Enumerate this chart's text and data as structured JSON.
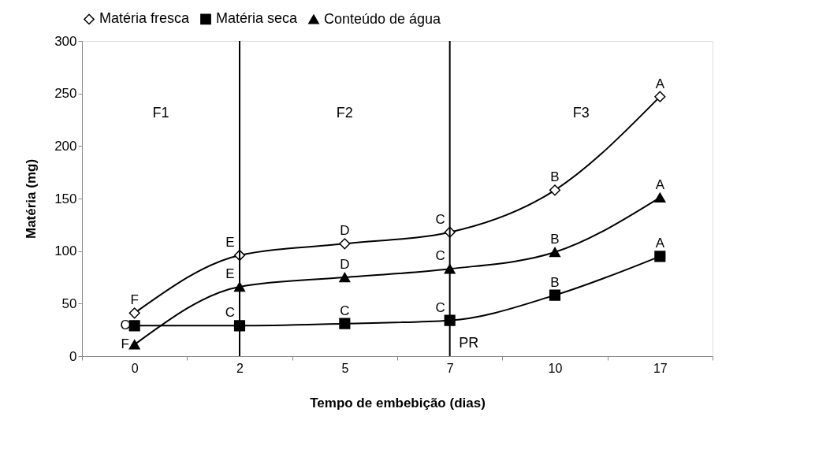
{
  "chart_data": {
    "type": "line",
    "xlabel": "Tempo de embebição (dias)",
    "ylabel": "Matéria (mg)",
    "categories": [
      "0",
      "2",
      "5",
      "7",
      "10",
      "17"
    ],
    "series": [
      {
        "name": "Matéria fresca",
        "color": "#000000",
        "marker": "diamond",
        "values": [
          41,
          96,
          107,
          118,
          158,
          247
        ]
      },
      {
        "name": "Matéria seca",
        "color": "#000000",
        "marker": "square",
        "values": [
          29,
          29,
          31,
          34,
          58,
          95
        ]
      },
      {
        "name": "Conteúdo de água",
        "color": "#000000",
        "marker": "triangle",
        "values": [
          11,
          66,
          75,
          83,
          99,
          151
        ]
      }
    ],
    "ylim": [
      0,
      300
    ],
    "yticks": [
      0,
      50,
      100,
      150,
      200,
      250,
      300
    ],
    "grid": false,
    "legend": "top",
    "ref_lines": [
      {
        "axis": "x",
        "value": "2",
        "color": "#000000"
      },
      {
        "axis": "x",
        "value": "7",
        "color": "#000000"
      }
    ],
    "annotations": [
      "F1",
      "F2",
      "F3",
      "PR",
      {
        "text": "F",
        "x": "0",
        "y": 41
      },
      {
        "text": "E",
        "x": "2",
        "y": 96
      },
      {
        "text": "D",
        "x": "5",
        "y": 107
      },
      {
        "text": "C",
        "x": "7",
        "y": 118
      },
      {
        "text": "B",
        "x": "10",
        "y": 158
      },
      {
        "text": "A",
        "x": "17",
        "y": 247
      },
      {
        "text": "C",
        "x": "0",
        "y": 29
      },
      {
        "text": "C",
        "x": "2",
        "y": 29
      },
      {
        "text": "C",
        "x": "5",
        "y": 31
      },
      {
        "text": "C",
        "x": "7",
        "y": 34
      },
      {
        "text": "B",
        "x": "10",
        "y": 58
      },
      {
        "text": "A",
        "x": "17",
        "y": 95
      },
      {
        "text": "F",
        "x": "0",
        "y": 11
      },
      {
        "text": "E",
        "x": "2",
        "y": 66
      },
      {
        "text": "D",
        "x": "5",
        "y": 75
      },
      {
        "text": "C",
        "x": "7",
        "y": 83
      },
      {
        "text": "B",
        "x": "10",
        "y": 99
      },
      {
        "text": "A",
        "x": "17",
        "y": 151
      }
    ]
  }
}
